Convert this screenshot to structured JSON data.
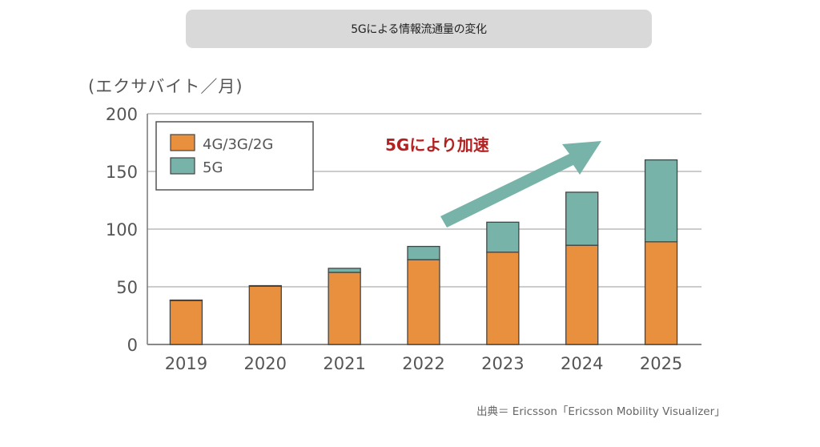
{
  "header": {
    "title": "5Gによる情報流通量の変化"
  },
  "unit_label": "(エクサバイト／月)",
  "source": "出典＝ Ericsson「Ericsson Mobility Visualizer」",
  "colors": {
    "legacy": "#e8903d",
    "fiveg": "#77b3a8",
    "arrow": "#77b3a8",
    "annotation": "#b22222",
    "grid": "#cccccc",
    "bar_stroke": "#444444"
  },
  "chart_data": {
    "type": "bar",
    "stacked": true,
    "title": "5Gによる情報流通量の変化",
    "xlabel": "",
    "ylabel": "(エクサバイト／月)",
    "ylim": [
      0,
      200
    ],
    "yticks": [
      0,
      50,
      100,
      150,
      200
    ],
    "grid": true,
    "legend_position": "top-left",
    "categories": [
      "2019",
      "2020",
      "2021",
      "2022",
      "2023",
      "2024",
      "2025"
    ],
    "series": [
      {
        "name": "4G/3G/2G",
        "color_key": "legacy",
        "values": [
          38,
          50.5,
          62.5,
          73.5,
          80,
          86,
          89
        ]
      },
      {
        "name": "5G",
        "color_key": "fiveg",
        "values": [
          0.5,
          0.5,
          3.5,
          11.5,
          26,
          46,
          71
        ]
      }
    ],
    "annotation": {
      "text": "5Gにより加速",
      "type": "upward-arrow"
    }
  }
}
